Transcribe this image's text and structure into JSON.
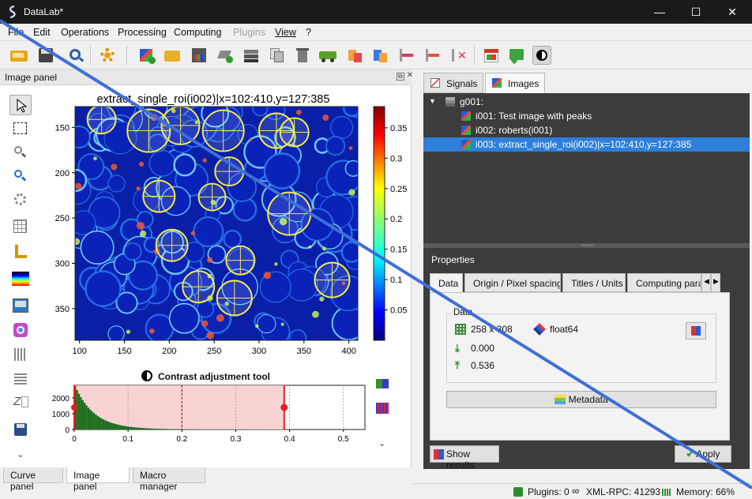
{
  "window": {
    "title": "DataLab*",
    "minimize_glyph": "—",
    "maximize_glyph": "☐",
    "close_glyph": "✕"
  },
  "menubar": [
    "File",
    "Edit",
    "Operations",
    "Processing",
    "Computing",
    "Plugins",
    "View",
    "?"
  ],
  "toolbar_icons": [
    "open-h5-icon",
    "save-icon",
    "browse-icon",
    "settings-gear-icon",
    "new-image-icon",
    "open-folder-icon",
    "save-image-icon",
    "add-objects-icon",
    "stack-layers-icon",
    "duplicate-icon",
    "delete-icon",
    "transfer-icon",
    "move-up-icon",
    "move-down-icon",
    "roi-edit-icon",
    "roi-add-icon",
    "roi-delete-icon",
    "plot-results-icon",
    "comment-icon",
    "contrast-toggle-icon"
  ],
  "image_panel": {
    "header": "Image panel",
    "plot_title": "extract_single_roi(i002)|x=102:410,y=127:385",
    "x_ticks": [
      "100",
      "150",
      "200",
      "250",
      "300",
      "350",
      "400"
    ],
    "y_ticks": [
      "150",
      "200",
      "250",
      "300",
      "350"
    ],
    "colorbar_ticks": [
      "0.35",
      "0.3",
      "0.25",
      "0.2",
      "0.15",
      "0.1",
      "0.05"
    ],
    "contrast_title": "Contrast adjustment tool",
    "hist_y_ticks": [
      "2000",
      "1000",
      "0"
    ],
    "hist_x_ticks": [
      "0",
      "0.1",
      "0.2",
      "0.3",
      "0.4",
      "0.5"
    ],
    "more_glyph": "⌄"
  },
  "bottom_tabs": [
    "Curve panel",
    "Image panel",
    "Macro manager"
  ],
  "right_tabs": [
    "Signals",
    "Images"
  ],
  "tree": {
    "group": "g001:",
    "items": [
      "i001: Test image with peaks",
      "i002: roberts(i001)",
      "i003: extract_single_roi(i002)|x=102:410,y=127:385"
    ],
    "selected_index": 2
  },
  "properties": {
    "title": "Properties",
    "tabs": [
      "Data",
      "Origin / Pixel spacing",
      "Titles / Units",
      "Computing para"
    ],
    "group_title": "Data",
    "size": "258 x 308",
    "dtype": "float64",
    "min": "0.000",
    "max": "0.536",
    "metadata_label": "Metadata",
    "show_results_label": "Show results",
    "apply_label": "Apply"
  },
  "statusbar": {
    "plugins": "Plugins: 0",
    "xmlrpc": "XML-RPC: 41293",
    "memory": "Memory: 66%"
  },
  "accent_color": "#3f6fd8",
  "selection_color": "#2d7fd9"
}
